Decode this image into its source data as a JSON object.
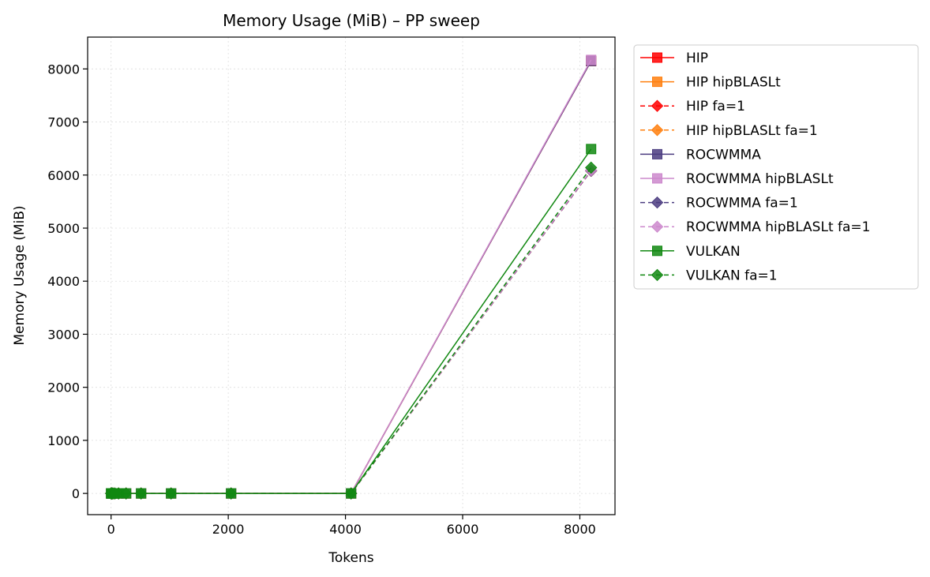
{
  "chart_data": {
    "type": "line",
    "title": "Memory Usage (MiB) – PP sweep",
    "xlabel": "Tokens",
    "ylabel": "Memory Usage (MiB)",
    "xlim": [
      -400,
      8600
    ],
    "ylim": [
      -400,
      8600
    ],
    "xticks": [
      0,
      2000,
      4000,
      6000,
      8000
    ],
    "xtick_labels": [
      "0",
      "2000",
      "4000",
      "6000",
      "8000"
    ],
    "yticks": [
      0,
      1000,
      2000,
      3000,
      4000,
      5000,
      6000,
      7000,
      8000
    ],
    "ytick_labels": [
      "0",
      "1000",
      "2000",
      "3000",
      "4000",
      "5000",
      "6000",
      "7000",
      "8000"
    ],
    "grid": true,
    "legend_position": "outside-right",
    "x": [
      1,
      2,
      4,
      8,
      16,
      32,
      64,
      128,
      256,
      512,
      1024,
      2048,
      4096,
      8192
    ],
    "series": [
      {
        "name": "HIP",
        "color": "#ff0000",
        "dash": "solid",
        "marker": "square",
        "values": [
          0,
          0,
          0,
          0,
          0,
          0,
          0,
          0,
          0,
          0,
          0,
          0,
          0,
          8150
        ]
      },
      {
        "name": "HIP hipBLASLt",
        "color": "#ff7f0e",
        "dash": "solid",
        "marker": "square",
        "values": [
          0,
          0,
          0,
          0,
          0,
          0,
          0,
          0,
          0,
          0,
          0,
          0,
          0,
          8150
        ]
      },
      {
        "name": "HIP fa=1",
        "color": "#ff0000",
        "dash": "dashed",
        "marker": "diamond",
        "values": [
          0,
          0,
          0,
          0,
          0,
          0,
          0,
          0,
          0,
          0,
          0,
          0,
          0,
          6080
        ]
      },
      {
        "name": "HIP hipBLASLt fa=1",
        "color": "#ff7f0e",
        "dash": "dashed",
        "marker": "diamond",
        "values": [
          0,
          0,
          0,
          0,
          0,
          0,
          0,
          0,
          0,
          0,
          0,
          0,
          0,
          6080
        ]
      },
      {
        "name": "ROCWMMA",
        "color": "#4b3c80",
        "dash": "solid",
        "marker": "square",
        "values": [
          0,
          0,
          0,
          0,
          0,
          0,
          0,
          0,
          0,
          0,
          0,
          0,
          0,
          8150
        ]
      },
      {
        "name": "ROCWMMA hipBLASLt",
        "color": "#cc88cc",
        "dash": "solid",
        "marker": "square",
        "values": [
          0,
          0,
          0,
          0,
          0,
          0,
          0,
          0,
          0,
          0,
          0,
          0,
          0,
          8170
        ]
      },
      {
        "name": "ROCWMMA fa=1",
        "color": "#4b3c80",
        "dash": "dashed",
        "marker": "diamond",
        "values": [
          0,
          0,
          0,
          0,
          0,
          0,
          0,
          0,
          0,
          0,
          0,
          0,
          0,
          6080
        ]
      },
      {
        "name": "ROCWMMA hipBLASLt fa=1",
        "color": "#cc88cc",
        "dash": "dashed",
        "marker": "diamond",
        "values": [
          0,
          0,
          0,
          0,
          0,
          0,
          0,
          0,
          0,
          0,
          0,
          0,
          0,
          6090
        ]
      },
      {
        "name": "VULKAN",
        "color": "#118811",
        "dash": "solid",
        "marker": "square",
        "values": [
          0,
          0,
          0,
          0,
          0,
          0,
          0,
          0,
          0,
          0,
          0,
          0,
          0,
          6490
        ]
      },
      {
        "name": "VULKAN fa=1",
        "color": "#118811",
        "dash": "dashed",
        "marker": "diamond",
        "values": [
          0,
          0,
          0,
          0,
          0,
          0,
          0,
          0,
          0,
          0,
          0,
          0,
          0,
          6140
        ]
      }
    ]
  }
}
